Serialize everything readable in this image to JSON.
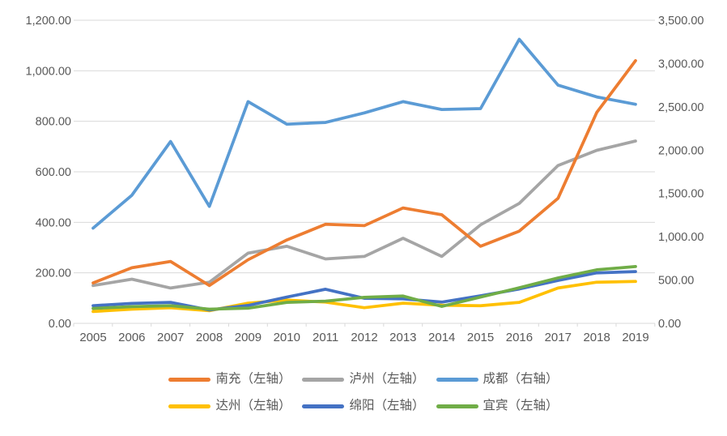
{
  "chart_data": {
    "type": "line",
    "x": [
      "2005",
      "2006",
      "2007",
      "2008",
      "2009",
      "2010",
      "2011",
      "2012",
      "2013",
      "2014",
      "2015",
      "2016",
      "2017",
      "2018",
      "2019"
    ],
    "series": [
      {
        "id": "nanchong",
        "name": "南充（左轴）",
        "axis": "left",
        "color": "#ED7D31",
        "values": [
          160,
          220,
          245,
          150,
          252,
          330,
          392,
          387,
          457,
          430,
          305,
          365,
          495,
          835,
          1040
        ]
      },
      {
        "id": "luzhou",
        "name": "泸州（左轴）",
        "axis": "left",
        "color": "#A5A5A5",
        "values": [
          150,
          175,
          140,
          163,
          278,
          305,
          255,
          265,
          337,
          265,
          390,
          475,
          625,
          685,
          722
        ]
      },
      {
        "id": "chengdu",
        "name": "成都（右轴）",
        "axis": "right",
        "color": "#5B9BD5",
        "values": [
          1100,
          1480,
          2100,
          1350,
          2560,
          2300,
          2320,
          2430,
          2560,
          2470,
          2480,
          3280,
          2750,
          2615,
          2530
        ]
      },
      {
        "id": "dazhou",
        "name": "达州（左轴）",
        "axis": "left",
        "color": "#FFC000",
        "values": [
          47,
          56,
          62,
          50,
          80,
          92,
          84,
          62,
          80,
          72,
          70,
          83,
          140,
          163,
          166
        ]
      },
      {
        "id": "mianyang",
        "name": "绵阳（左轴）",
        "axis": "left",
        "color": "#4472C4",
        "values": [
          70,
          79,
          83,
          53,
          71,
          104,
          135,
          99,
          97,
          84,
          109,
          136,
          170,
          200,
          205
        ]
      },
      {
        "id": "yibin",
        "name": "宜宾（左轴）",
        "axis": "left",
        "color": "#70AD47",
        "values": [
          59,
          66,
          70,
          56,
          60,
          83,
          88,
          103,
          108,
          67,
          104,
          141,
          180,
          212,
          225
        ]
      }
    ],
    "left_axis": {
      "min": 0,
      "max": 1200,
      "step": 200,
      "labels": [
        "0.00",
        "200.00",
        "400.00",
        "600.00",
        "800.00",
        "1,000.00",
        "1,200.00"
      ]
    },
    "right_axis": {
      "min": 0,
      "max": 3500,
      "step": 500,
      "labels": [
        "0.00",
        "500.00",
        "1,000.00",
        "1,500.00",
        "2,000.00",
        "2,500.00",
        "3,000.00",
        "3,500.00"
      ]
    },
    "grid": true,
    "legend_position": "bottom",
    "draw_order": [
      "luzhou",
      "chengdu",
      "dazhou",
      "mianyang",
      "yibin",
      "nanchong"
    ],
    "legend_rows": [
      [
        "nanchong",
        "luzhou",
        "chengdu"
      ],
      [
        "dazhou",
        "mianyang",
        "yibin"
      ]
    ]
  },
  "colors": {
    "grid": "#D9D9D9",
    "axis_text": "#595959",
    "legend_text": "#595959",
    "background": "#FFFFFF"
  }
}
